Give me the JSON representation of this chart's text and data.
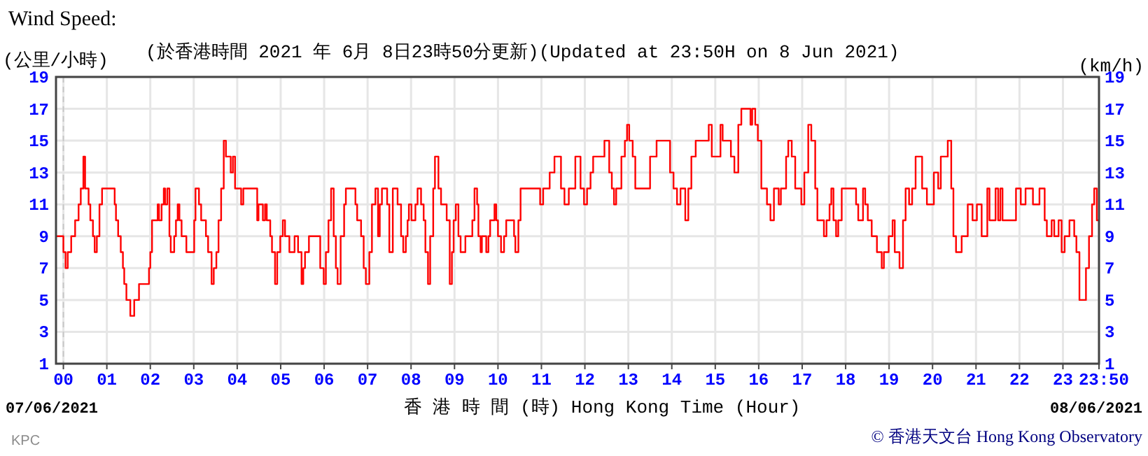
{
  "chart_data": {
    "type": "step",
    "title": "Wind Speed:",
    "subtitle": "(於香港時間 2021 年 6月 8日23時50分更新)(Updated at 23:50H on 8 Jun 2021)",
    "ylabel": "(公里/小時)",
    "y2label": "(km/h)",
    "xlabel": "香 港 時 間 (時) Hong Kong Time (Hour)",
    "annotations": [
      "07/06/2021",
      "08/06/2021",
      "© 香港天文台 Hong Kong Observatory",
      "KPC"
    ],
    "x": [
      -0.17,
      0.0,
      0.05,
      0.1,
      0.18,
      0.27,
      0.35,
      0.4,
      0.46,
      0.5,
      0.58,
      0.62,
      0.68,
      0.72,
      0.77,
      0.83,
      0.89,
      1.18,
      1.21,
      1.26,
      1.32,
      1.37,
      1.4,
      1.45,
      1.54,
      1.63,
      1.74,
      1.97,
      2.0,
      2.04,
      2.17,
      2.2,
      2.26,
      2.31,
      2.34,
      2.39,
      2.44,
      2.47,
      2.55,
      2.59,
      2.63,
      2.67,
      2.72,
      2.83,
      3.01,
      3.04,
      3.12,
      3.17,
      3.28,
      3.33,
      3.41,
      3.46,
      3.52,
      3.57,
      3.63,
      3.69,
      3.74,
      3.85,
      3.9,
      3.95,
      4.09,
      4.14,
      4.46,
      4.49,
      4.59,
      4.64,
      4.68,
      4.76,
      4.8,
      4.87,
      4.92,
      4.99,
      5.05,
      5.1,
      5.2,
      5.32,
      5.4,
      5.48,
      5.52,
      5.56,
      5.65,
      5.91,
      5.99,
      6.04,
      6.1,
      6.16,
      6.22,
      6.27,
      6.31,
      6.38,
      6.46,
      6.5,
      6.72,
      6.76,
      6.85,
      6.91,
      6.96,
      7.04,
      7.1,
      7.18,
      7.24,
      7.28,
      7.33,
      7.45,
      7.5,
      7.58,
      7.69,
      7.77,
      7.82,
      7.88,
      7.92,
      7.95,
      8.01,
      8.1,
      8.15,
      8.23,
      8.29,
      8.33,
      8.39,
      8.44,
      8.51,
      8.55,
      8.63,
      8.69,
      8.82,
      8.89,
      8.94,
      8.98,
      9.03,
      9.09,
      9.14,
      9.25,
      9.41,
      9.46,
      9.52,
      9.55,
      9.6,
      9.63,
      9.73,
      9.78,
      9.82,
      9.92,
      9.96,
      10.0,
      10.07,
      10.14,
      10.19,
      10.37,
      10.4,
      10.47,
      10.52,
      10.97,
      11.04,
      11.19,
      11.3,
      11.45,
      11.53,
      11.63,
      11.78,
      11.9,
      11.98,
      12.05,
      12.13,
      12.19,
      12.45,
      12.56,
      12.62,
      12.67,
      12.72,
      12.84,
      12.92,
      12.97,
      13.02,
      13.1,
      13.16,
      13.5,
      13.65,
      13.96,
      14.04,
      14.12,
      14.2,
      14.31,
      14.38,
      14.45,
      14.55,
      14.85,
      14.92,
      15.12,
      15.17,
      15.36,
      15.44,
      15.53,
      15.6,
      15.81,
      15.85,
      15.92,
      15.98,
      16.06,
      16.19,
      16.27,
      16.35,
      16.46,
      16.51,
      16.63,
      16.68,
      16.76,
      16.84,
      16.98,
      17.05,
      17.14,
      17.21,
      17.3,
      17.35,
      17.5,
      17.56,
      17.63,
      17.67,
      17.72,
      17.78,
      17.83,
      17.91,
      18.24,
      18.29,
      18.4,
      18.45,
      18.51,
      18.6,
      18.72,
      18.83,
      18.88,
      18.99,
      19.08,
      19.13,
      19.24,
      19.32,
      19.38,
      19.46,
      19.53,
      19.61,
      19.76,
      19.87,
      20.03,
      20.13,
      20.19,
      20.35,
      20.43,
      20.48,
      20.54,
      20.67,
      20.81,
      20.92,
      21.02,
      21.13,
      21.26,
      21.31,
      21.45,
      21.51,
      21.56,
      21.61,
      21.92,
      22.03,
      22.14,
      22.31,
      22.46,
      22.58,
      22.63,
      22.74,
      22.8,
      22.9,
      22.97,
      23.04,
      23.15,
      23.26,
      23.31,
      23.38,
      23.53,
      23.6,
      23.67,
      23.72,
      23.78,
      23.83
    ],
    "series": [
      {
        "color": "#ff0000",
        "values": [
          9,
          8,
          7,
          8,
          9,
          10,
          11,
          12,
          14,
          12,
          11,
          10,
          9,
          8,
          9,
          11,
          12,
          11,
          10,
          9,
          8,
          7,
          6,
          5,
          4,
          5,
          6,
          7,
          8,
          10,
          11,
          10,
          11,
          12,
          11,
          12,
          9,
          8,
          9,
          10,
          11,
          10,
          9,
          8,
          10,
          12,
          11,
          10,
          9,
          8,
          6,
          7,
          8,
          10,
          12,
          15,
          14,
          13,
          14,
          12,
          11,
          12,
          10,
          11,
          10,
          11,
          10,
          9,
          8,
          6,
          8,
          9,
          10,
          9,
          8,
          9,
          8,
          6,
          7,
          8,
          9,
          7,
          6,
          8,
          10,
          12,
          9,
          7,
          6,
          9,
          11,
          12,
          11,
          10,
          9,
          7,
          6,
          8,
          11,
          12,
          9,
          11,
          12,
          11,
          8,
          12,
          11,
          9,
          8,
          9,
          10,
          11,
          10,
          11,
          12,
          11,
          10,
          8,
          6,
          9,
          12,
          14,
          12,
          11,
          10,
          6,
          8,
          10,
          11,
          9,
          8,
          9,
          10,
          12,
          11,
          9,
          8,
          9,
          8,
          9,
          10,
          11,
          10,
          9,
          8,
          9,
          10,
          9,
          8,
          10,
          12,
          11,
          12,
          13,
          14,
          12,
          11,
          12,
          14,
          12,
          11,
          12,
          13,
          14,
          15,
          13,
          12,
          11,
          12,
          14,
          15,
          16,
          15,
          14,
          12,
          14,
          15,
          13,
          12,
          11,
          12,
          10,
          12,
          14,
          15,
          16,
          14,
          16,
          15,
          14,
          13,
          16,
          17,
          16,
          17,
          16,
          15,
          12,
          11,
          10,
          12,
          11,
          12,
          14,
          15,
          14,
          12,
          11,
          13,
          16,
          15,
          12,
          10,
          9,
          10,
          11,
          12,
          10,
          9,
          10,
          12,
          11,
          10,
          12,
          11,
          10,
          9,
          8,
          7,
          8,
          9,
          10,
          8,
          7,
          10,
          12,
          11,
          12,
          14,
          12,
          11,
          13,
          12,
          14,
          15,
          12,
          9,
          8,
          9,
          11,
          10,
          11,
          9,
          12,
          10,
          12,
          10,
          12,
          10,
          12,
          11,
          12,
          11,
          12,
          10,
          9,
          10,
          9,
          10,
          8,
          9,
          10,
          9,
          8,
          5,
          7,
          9,
          11,
          12,
          10,
          10
        ]
      }
    ],
    "xlim": [
      -0.17,
      23.83
    ],
    "xticks": [
      {
        "value": 0,
        "label": "00"
      },
      {
        "value": 1,
        "label": "01"
      },
      {
        "value": 2,
        "label": "02"
      },
      {
        "value": 3,
        "label": "03"
      },
      {
        "value": 4,
        "label": "04"
      },
      {
        "value": 5,
        "label": "05"
      },
      {
        "value": 6,
        "label": "06"
      },
      {
        "value": 7,
        "label": "07"
      },
      {
        "value": 8,
        "label": "08"
      },
      {
        "value": 9,
        "label": "09"
      },
      10,
      11,
      12,
      13,
      14,
      15,
      16,
      17,
      18,
      19,
      20,
      21,
      22,
      23,
      {
        "value": 23.83,
        "label": "23:50"
      }
    ],
    "ylim": [
      1,
      19
    ],
    "yticks": [
      1,
      3,
      5,
      7,
      9,
      11,
      13,
      15,
      17,
      19
    ],
    "y2lim": [
      1,
      19
    ],
    "y2ticks": [
      1,
      3,
      5,
      7,
      9,
      11,
      13,
      15,
      17,
      19
    ],
    "ref_lines": [
      {
        "axis": "x",
        "value": 0,
        "color": "#c8c8c8",
        "line_style": "dashed"
      }
    ],
    "grid": true,
    "marker": "none",
    "line_style": "solid"
  }
}
